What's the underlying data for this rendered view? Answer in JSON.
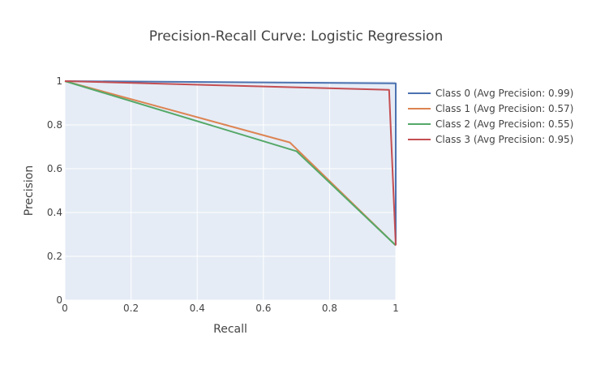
{
  "chart_data": {
    "type": "line",
    "title": "Precision-Recall Curve: Logistic Regression",
    "xlabel": "Recall",
    "ylabel": "Precision",
    "xlim": [
      0,
      1
    ],
    "ylim": [
      0,
      1
    ],
    "x_ticks": [
      "0",
      "0.2",
      "0.4",
      "0.6",
      "0.8",
      "1"
    ],
    "y_ticks": [
      "0",
      "0.2",
      "0.4",
      "0.6",
      "0.8",
      "1"
    ],
    "grid": true,
    "legend_position": "right",
    "plot_background": "#e5ecf6",
    "series": [
      {
        "name": "Class 0 (Avg Precision: 0.99)",
        "color": "#4c72b0",
        "points": [
          [
            0,
            1.0
          ],
          [
            1.0,
            0.99
          ],
          [
            1.0,
            0.25
          ]
        ]
      },
      {
        "name": "Class 1 (Avg Precision: 0.57)",
        "color": "#dd8452",
        "points": [
          [
            0,
            1.0
          ],
          [
            0.68,
            0.72
          ],
          [
            1.0,
            0.25
          ]
        ]
      },
      {
        "name": "Class 2 (Avg Precision: 0.55)",
        "color": "#55a868",
        "points": [
          [
            0,
            1.0
          ],
          [
            0.7,
            0.68
          ],
          [
            1.0,
            0.25
          ]
        ]
      },
      {
        "name": "Class 3 (Avg Precision: 0.95)",
        "color": "#c44e52",
        "points": [
          [
            0,
            1.0
          ],
          [
            0.98,
            0.96
          ],
          [
            1.0,
            0.25
          ]
        ]
      }
    ]
  }
}
